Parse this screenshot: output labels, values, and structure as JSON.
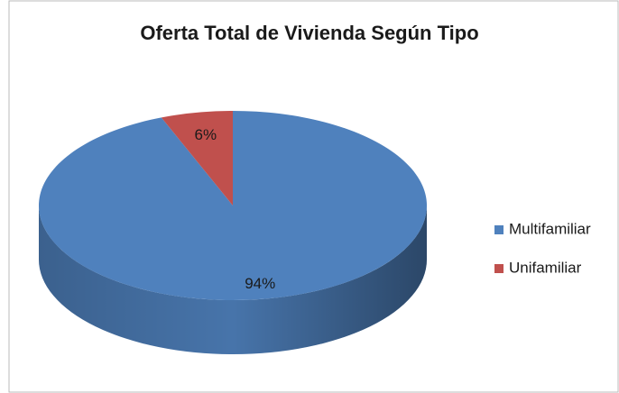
{
  "chart_data": {
    "type": "pie",
    "title": "Oferta Total de Vivienda Según Tipo",
    "categories": [
      "Multifamiliar",
      "Unifamiliar"
    ],
    "values": [
      94,
      6
    ],
    "value_labels": [
      "94%",
      "6%"
    ],
    "colors": [
      "#4f81bd",
      "#c0504d"
    ],
    "legend": "right"
  }
}
